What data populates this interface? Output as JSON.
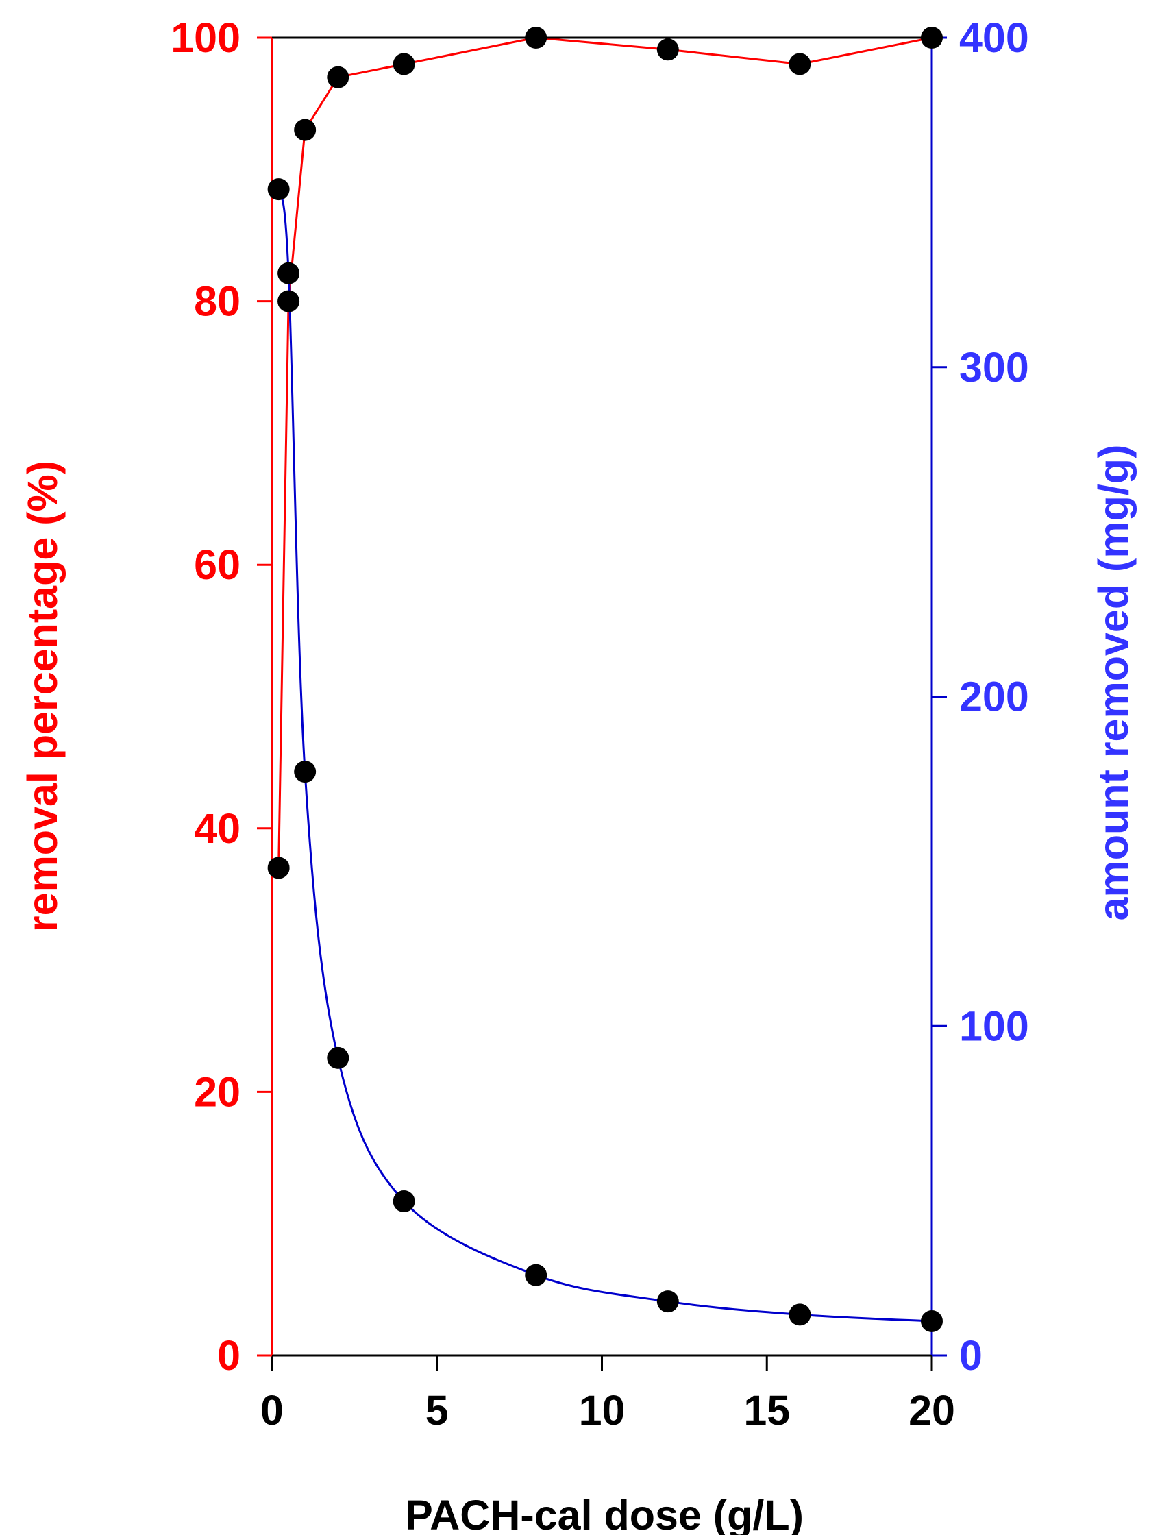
{
  "chart_data": {
    "type": "line",
    "xlabel": "PACH-cal dose (g/L)",
    "ylabel": "removal percentage  (%)",
    "y2label": "amount removed (mg/g)",
    "xlim": [
      0,
      20
    ],
    "ylim": [
      0,
      100
    ],
    "y2lim": [
      0,
      400
    ],
    "x_ticks": [
      "0",
      "5",
      "10",
      "15",
      "20"
    ],
    "y_ticks": [
      "0",
      "20",
      "40",
      "60",
      "80",
      "100"
    ],
    "y2_ticks": [
      "0",
      "100",
      "200",
      "300",
      "400"
    ],
    "grid": false,
    "legend": "none",
    "series": [
      {
        "axis": "left",
        "color": "#ff0000",
        "line": "straight",
        "points": [
          {
            "x": 0.2,
            "y": 37.0
          },
          {
            "x": 0.5,
            "y": 80.0
          },
          {
            "x": 1.0,
            "y": 93.0
          },
          {
            "x": 2.0,
            "y": 97.0
          },
          {
            "x": 4.0,
            "y": 98.0
          },
          {
            "x": 8.0,
            "y": 100.0
          },
          {
            "x": 12.0,
            "y": 99.1
          },
          {
            "x": 16.0,
            "y": 98.0
          },
          {
            "x": 20.0,
            "y": 100.0
          }
        ]
      },
      {
        "axis": "right",
        "color": "#0000cc",
        "line": "smooth",
        "points": [
          {
            "x": 0.2,
            "y": 354.0
          },
          {
            "x": 0.5,
            "y": 328.5
          },
          {
            "x": 1.0,
            "y": 177.2
          },
          {
            "x": 2.0,
            "y": 90.3
          },
          {
            "x": 4.0,
            "y": 46.8
          },
          {
            "x": 8.0,
            "y": 24.4
          },
          {
            "x": 12.0,
            "y": 16.4
          },
          {
            "x": 16.0,
            "y": 12.4
          },
          {
            "x": 20.0,
            "y": 10.4
          }
        ]
      }
    ],
    "colors": {
      "left_axis": "#ff0000",
      "right_axis_line": "#0000cc",
      "right_axis_labels": "#3333ff",
      "top_axis": "#000000",
      "bottom_axis": "#000000",
      "markers": "#000000"
    }
  }
}
